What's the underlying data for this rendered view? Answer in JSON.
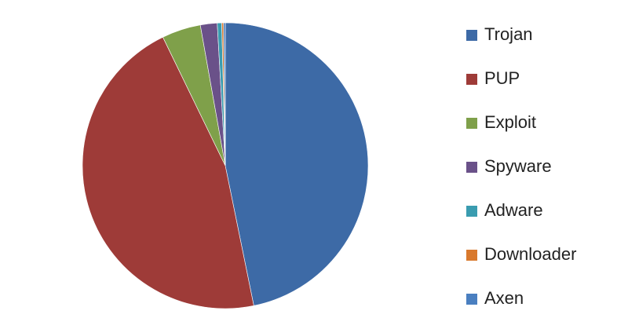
{
  "chart_data": {
    "type": "pie",
    "categories": [
      "Trojan",
      "PUP",
      "Exploit",
      "Spyware",
      "Adware",
      "Downloader",
      "Axen"
    ],
    "values": [
      46.8,
      46.0,
      4.4,
      1.9,
      0.5,
      0.2,
      0.2
    ],
    "colors": [
      "#3d6aa6",
      "#9e3b38",
      "#7fa04a",
      "#6a5189",
      "#3a9cb0",
      "#d9792d",
      "#4a7fc0"
    ],
    "legend": "right"
  }
}
